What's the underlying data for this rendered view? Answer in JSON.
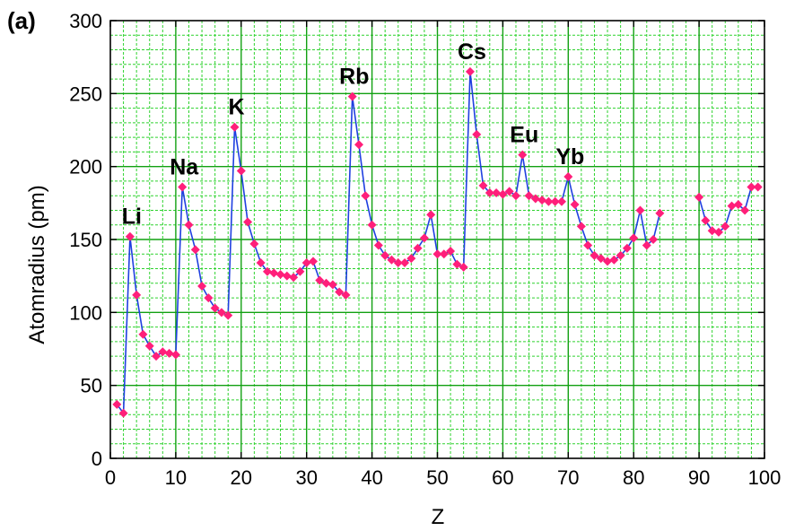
{
  "chart_data": {
    "type": "line",
    "panel_label": "(a)",
    "title": "",
    "xlabel": "Z",
    "ylabel": "Atomradius  (pm)",
    "xlim": [
      0,
      100
    ],
    "ylim": [
      0,
      300
    ],
    "x_ticks": [
      "0",
      "10",
      "20",
      "30",
      "40",
      "50",
      "60",
      "70",
      "80",
      "90",
      "100"
    ],
    "y_ticks": [
      "0",
      "50",
      "100",
      "150",
      "200",
      "250",
      "300"
    ],
    "grid": true,
    "colors": {
      "line": "#1f3fe0",
      "marker": "#ff1f7a",
      "major_grid": "#12a012",
      "minor_grid": "#2ed22e"
    },
    "segments": [
      {
        "x": [
          1,
          2,
          3,
          4,
          5,
          6,
          7,
          8,
          9,
          10,
          11,
          12,
          13,
          14,
          15,
          16,
          17,
          18,
          19,
          20,
          21,
          22,
          23,
          24,
          25,
          26,
          27,
          28,
          29,
          30,
          31,
          32,
          33,
          34,
          35,
          36,
          37,
          38,
          39,
          40,
          41,
          42,
          43,
          44,
          45,
          46,
          47,
          48,
          49,
          50,
          51,
          52,
          53,
          54,
          55,
          56,
          57,
          58,
          59,
          60,
          61,
          62,
          63,
          64,
          65,
          66,
          67,
          68,
          69,
          70,
          71,
          72,
          73,
          74,
          75,
          76,
          77,
          78,
          79,
          80,
          81,
          82,
          83,
          84
        ],
        "y": [
          37,
          31,
          152,
          112,
          85,
          77,
          70,
          73,
          72,
          71,
          186,
          160,
          143,
          118,
          110,
          103,
          100,
          98,
          227,
          197,
          162,
          147,
          134,
          128,
          127,
          126,
          125,
          124,
          128,
          134,
          135,
          122,
          120,
          119,
          114,
          112,
          248,
          215,
          180,
          160,
          146,
          139,
          136,
          134,
          134,
          137,
          144,
          151,
          167,
          140,
          140,
          142,
          133,
          131,
          265,
          222,
          187,
          182,
          182,
          181,
          183,
          180,
          208,
          180,
          178,
          177,
          176,
          176,
          176,
          193,
          174,
          159,
          146,
          139,
          137,
          135,
          136,
          139,
          144,
          151,
          170,
          146,
          150,
          168
        ]
      },
      {
        "x": [
          90,
          91,
          92,
          93,
          94,
          95,
          96,
          97,
          98,
          99
        ],
        "y": [
          179,
          163,
          156,
          155,
          159,
          173,
          174,
          170,
          186,
          186
        ]
      }
    ],
    "annotations": [
      {
        "text": "Li",
        "x": 3,
        "y": 152
      },
      {
        "text": "Na",
        "x": 11,
        "y": 186
      },
      {
        "text": "K",
        "x": 19,
        "y": 227
      },
      {
        "text": "Rb",
        "x": 37,
        "y": 248
      },
      {
        "text": "Cs",
        "x": 55,
        "y": 265
      },
      {
        "text": "Eu",
        "x": 63,
        "y": 208
      },
      {
        "text": "Yb",
        "x": 70,
        "y": 193
      }
    ]
  }
}
